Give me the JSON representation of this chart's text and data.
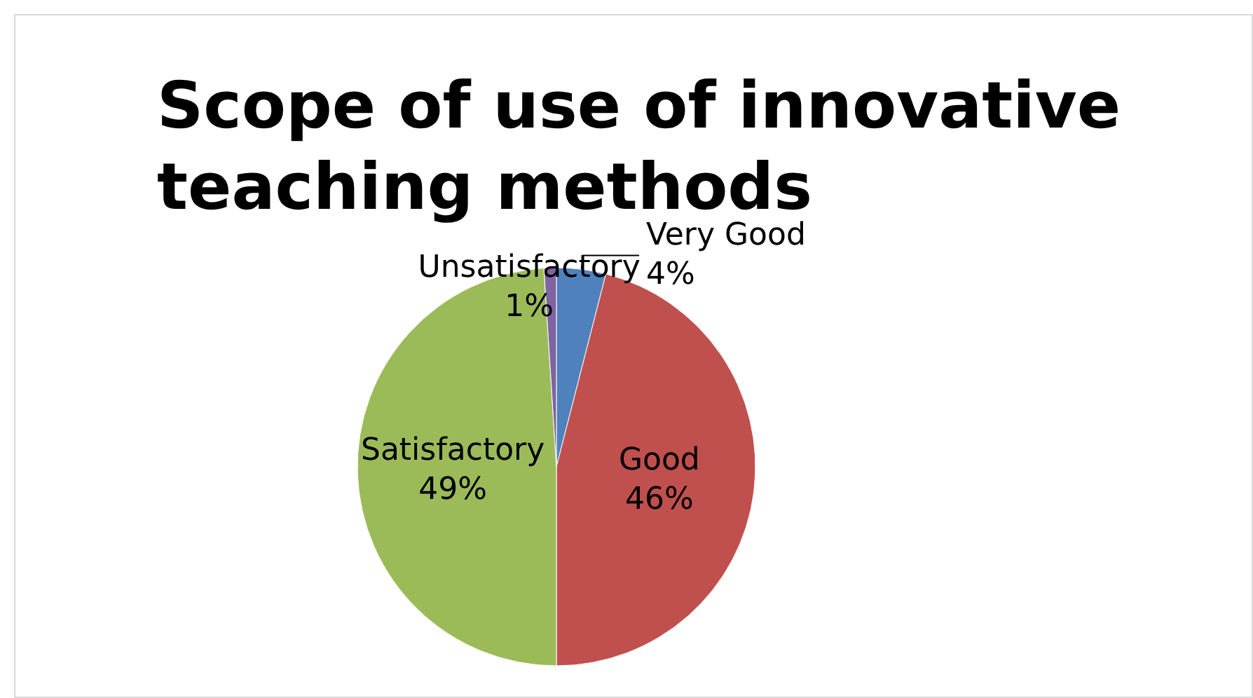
{
  "chart_data": {
    "type": "pie",
    "title": "Scope of use of innovative teaching methods",
    "categories": [
      "Very Good",
      "Good",
      "Satisfactory",
      "Unsatisfactory"
    ],
    "values": [
      4,
      46,
      49,
      1
    ],
    "colors": [
      "#4f81bd",
      "#c0504d",
      "#9bbb59",
      "#8064a2"
    ],
    "value_labels": [
      "4%",
      "46%",
      "49%",
      "1%"
    ],
    "legend": false
  }
}
